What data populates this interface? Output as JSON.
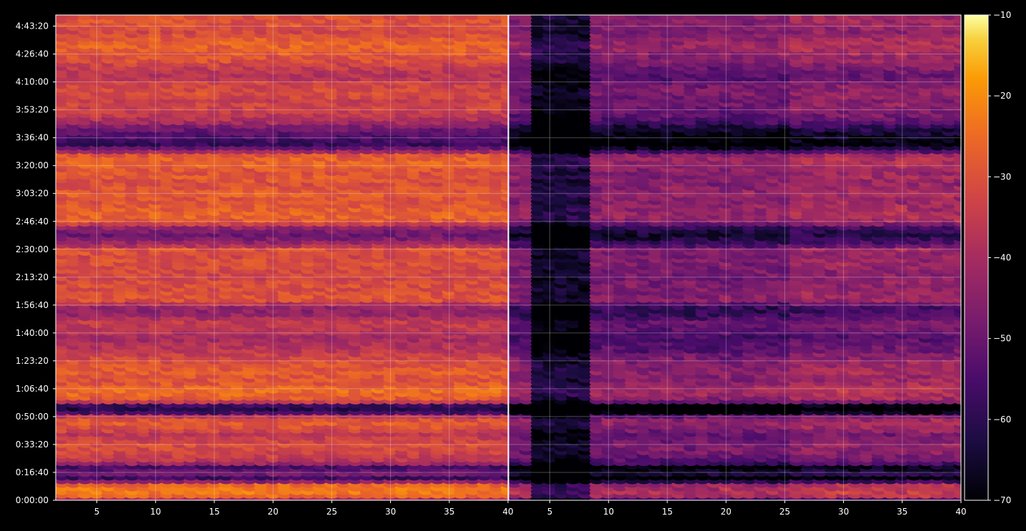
{
  "chart_data": {
    "type": "heatmap",
    "colormap": "inferno",
    "background": "#000000",
    "grid": true,
    "panels": [
      {
        "name": "left",
        "xlim": [
          1.5,
          40
        ],
        "brightness": "high"
      },
      {
        "name": "right",
        "xlim": [
          1.5,
          40
        ],
        "brightness": "low",
        "dark_columns_approx": [
          4,
          8
        ]
      }
    ],
    "x_ticks": [
      "5",
      "10",
      "15",
      "20",
      "25",
      "30",
      "35",
      "40"
    ],
    "x_tick_values": [
      5,
      10,
      15,
      20,
      25,
      30,
      35,
      40
    ],
    "y_ticks": [
      "0:00:00",
      "0:16:40",
      "0:33:20",
      "0:50:00",
      "1:06:40",
      "1:23:20",
      "1:40:00",
      "1:56:40",
      "2:13:20",
      "2:30:00",
      "2:46:40",
      "3:03:20",
      "3:20:00",
      "3:36:40",
      "3:53:20",
      "4:10:00",
      "4:26:40",
      "4:43:20"
    ],
    "y_tick_seconds": [
      0,
      1000,
      2000,
      3000,
      4000,
      5000,
      6000,
      7000,
      8000,
      9000,
      10000,
      11000,
      12000,
      13000,
      14000,
      15000,
      16000,
      17000
    ],
    "ylim_seconds": [
      0,
      17400
    ],
    "colorbar": {
      "ticks": [
        "−10",
        "−20",
        "−30",
        "−40",
        "−50",
        "−60",
        "−70"
      ],
      "tick_values": [
        -10,
        -20,
        -30,
        -40,
        -50,
        -60,
        -70
      ],
      "range": [
        -70,
        -10
      ]
    },
    "level_profile_left": [
      [
        0,
        -48
      ],
      [
        200,
        -24
      ],
      [
        400,
        -22
      ],
      [
        600,
        -26
      ],
      [
        800,
        -60
      ],
      [
        1000,
        -46
      ],
      [
        1200,
        -58
      ],
      [
        1400,
        -38
      ],
      [
        1600,
        -34
      ],
      [
        1800,
        -32
      ],
      [
        2000,
        -31
      ],
      [
        2200,
        -33
      ],
      [
        2400,
        -36
      ],
      [
        2600,
        -30
      ],
      [
        2800,
        -28
      ],
      [
        3000,
        -30
      ],
      [
        3200,
        -58
      ],
      [
        3400,
        -64
      ],
      [
        3600,
        -30
      ],
      [
        3800,
        -26
      ],
      [
        4000,
        -24
      ],
      [
        4200,
        -28
      ],
      [
        4400,
        -30
      ],
      [
        4600,
        -27
      ],
      [
        4800,
        -29
      ],
      [
        5000,
        -30
      ],
      [
        5200,
        -33
      ],
      [
        5400,
        -36
      ],
      [
        5600,
        -38
      ],
      [
        5800,
        -40
      ],
      [
        6000,
        -39
      ],
      [
        6200,
        -36
      ],
      [
        6400,
        -34
      ],
      [
        6600,
        -40
      ],
      [
        6800,
        -44
      ],
      [
        7000,
        -42
      ],
      [
        7200,
        -30
      ],
      [
        7400,
        -29
      ],
      [
        7600,
        -31
      ],
      [
        7800,
        -30
      ],
      [
        8000,
        -33
      ],
      [
        8200,
        -32
      ],
      [
        8400,
        -31
      ],
      [
        8600,
        -30
      ],
      [
        8800,
        -32
      ],
      [
        9000,
        -28
      ],
      [
        9200,
        -40
      ],
      [
        9400,
        -46
      ],
      [
        9600,
        -50
      ],
      [
        9800,
        -44
      ],
      [
        10000,
        -30
      ],
      [
        10200,
        -26
      ],
      [
        10400,
        -27
      ],
      [
        10600,
        -28
      ],
      [
        10800,
        -30
      ],
      [
        11000,
        -27
      ],
      [
        11200,
        -29
      ],
      [
        11400,
        -31
      ],
      [
        11600,
        -28
      ],
      [
        11800,
        -30
      ],
      [
        12000,
        -27
      ],
      [
        12200,
        -26
      ],
      [
        12400,
        -28
      ],
      [
        12600,
        -46
      ],
      [
        12800,
        -58
      ],
      [
        13000,
        -55
      ],
      [
        13200,
        -52
      ],
      [
        13400,
        -48
      ],
      [
        13600,
        -40
      ],
      [
        13800,
        -36
      ],
      [
        14000,
        -34
      ],
      [
        14200,
        -32
      ],
      [
        14400,
        -34
      ],
      [
        14600,
        -30
      ],
      [
        14800,
        -32
      ],
      [
        15000,
        -33
      ],
      [
        15200,
        -38
      ],
      [
        15400,
        -36
      ],
      [
        15600,
        -34
      ],
      [
        15800,
        -30
      ],
      [
        16000,
        -29
      ],
      [
        16200,
        -27
      ],
      [
        16400,
        -26
      ],
      [
        16600,
        -28
      ],
      [
        16800,
        -32
      ],
      [
        17000,
        -30
      ],
      [
        17200,
        -29
      ],
      [
        17400,
        -30
      ]
    ]
  }
}
